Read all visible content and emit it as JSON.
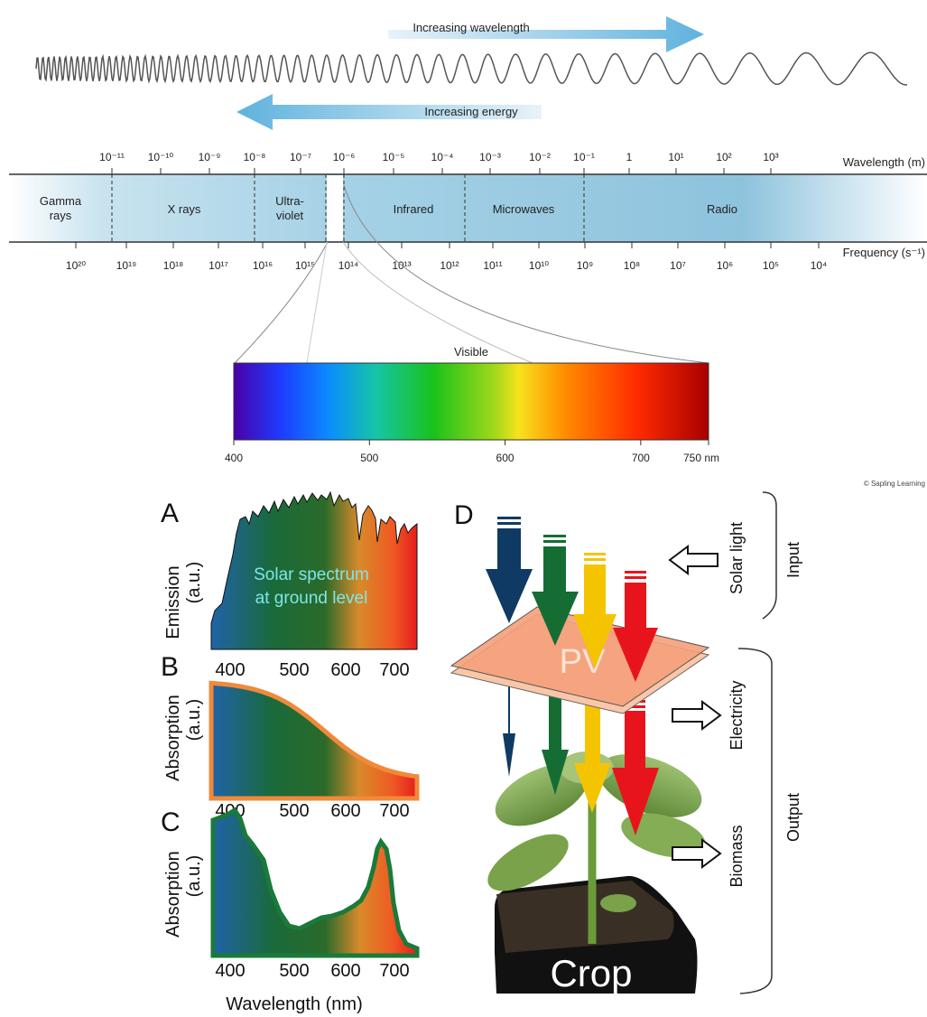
{
  "colors": {
    "band_blue": "#8fc4dd",
    "violet": "#4a00a8",
    "blue": "#1d5cff",
    "green": "#19c21a",
    "yellow": "#f7e21c",
    "orange": "#ff8a00",
    "red": "#d60000",
    "arrow_blue": "#0f3a63",
    "arrow_green": "#156d34",
    "arrow_yellow": "#f5c400",
    "arrow_red": "#e8141b",
    "pv_panel": "#f4a07a",
    "curve_orange": "#f08a3a",
    "curve_green": "#1a7a3a"
  },
  "spectrum": {
    "increasing_wavelength": "Increasing wavelength",
    "increasing_energy": "Increasing energy",
    "wavelength_axis_label": "Wavelength (m)",
    "frequency_axis_label": "Frequency (s⁻¹)",
    "wavelength_ticks": [
      "10⁻¹¹",
      "10⁻¹⁰",
      "10⁻⁹",
      "10⁻⁸",
      "10⁻⁷",
      "10⁻⁶",
      "10⁻⁵",
      "10⁻⁴",
      "10⁻³",
      "10⁻²",
      "10⁻¹",
      "1",
      "10¹",
      "10²",
      "10³"
    ],
    "frequency_ticks": [
      "10²⁰",
      "10¹⁹",
      "10¹⁸",
      "10¹⁷",
      "10¹⁶",
      "10¹⁵",
      "10¹⁴",
      "10¹³",
      "10¹²",
      "10¹¹",
      "10¹⁰",
      "10⁹",
      "10⁸",
      "10⁷",
      "10⁶",
      "10⁵",
      "10⁴"
    ],
    "regions": [
      "Gamma\nrays",
      "X rays",
      "Ultra-\nviolet",
      "Infrared",
      "Microwaves",
      "Radio"
    ],
    "visible_label": "Visible",
    "visible_ticks": [
      "400",
      "500",
      "600",
      "700",
      "750 nm"
    ],
    "credit": "© Sapling Learning"
  },
  "panels": {
    "a_letter": "A",
    "b_letter": "B",
    "c_letter": "C",
    "d_letter": "D",
    "a_ylabel": "Emission",
    "b_ylabel": "Absorption",
    "c_ylabel": "Absorption",
    "units": "(a.u.)",
    "a_overlay": "Solar spectrum\nat ground level",
    "x_ticks": [
      "400",
      "500",
      "600",
      "700"
    ],
    "xlabel": "Wavelength (nm)"
  },
  "agrivoltaic": {
    "pv_label": "PV",
    "crop_label": "Crop",
    "solar_light": "Solar light",
    "electricity": "Electricity",
    "biomass": "Biomass",
    "input": "Input",
    "output": "Output"
  }
}
